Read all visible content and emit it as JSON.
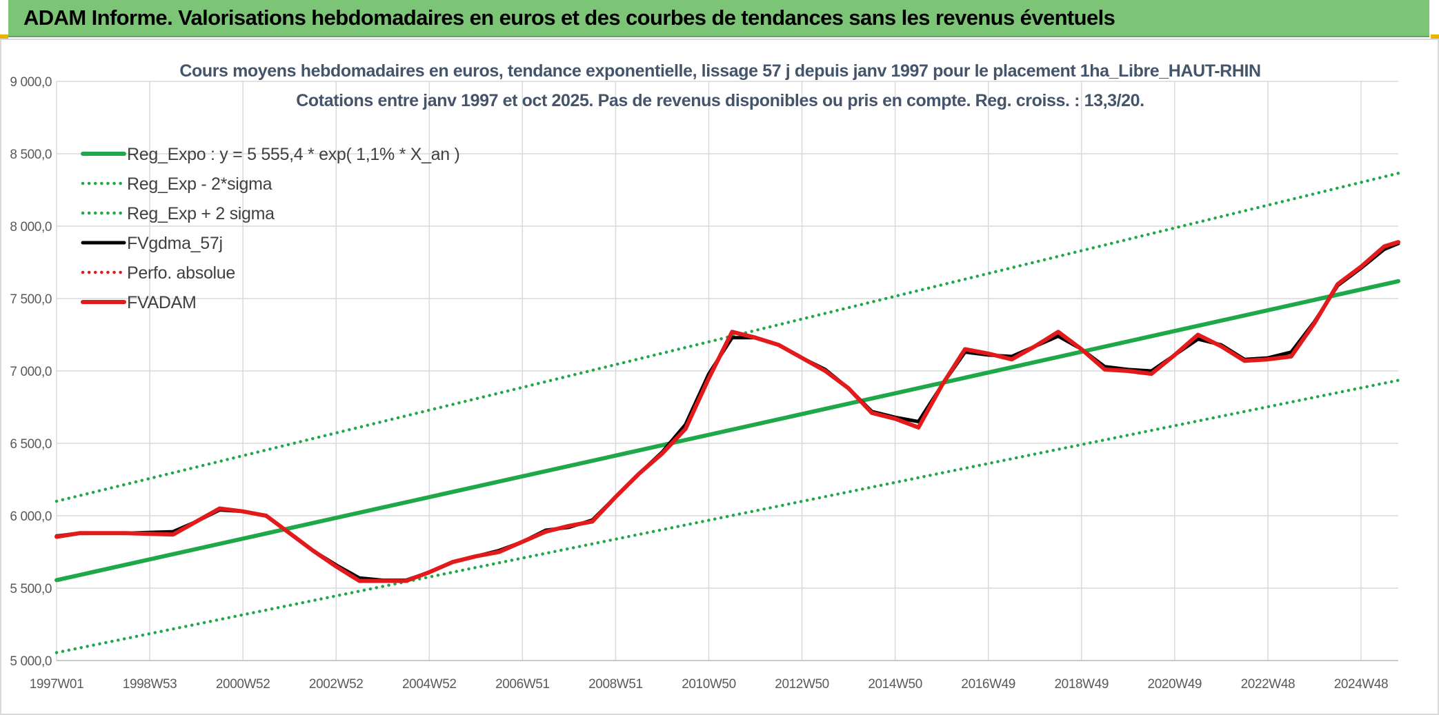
{
  "header": {
    "title": "ADAM Informe. Valorisations hebdomadaires en euros et des courbes de tendances sans les revenus éventuels",
    "banner_color": "#7cc576",
    "accent_color": "#e8b400"
  },
  "chart_data": {
    "type": "line",
    "title_line1": "Cours moyens hebdomadaires en euros, tendance exponentielle, lissage 57 j depuis janv 1997 pour le placement 1ha_Libre_HAUT-RHIN",
    "title_line2": "Cotations entre janv 1997 et oct 2025. Pas de revenus disponibles ou pris en compte. Reg. croiss. : 13,3/20.",
    "xlabel": "",
    "ylabel": "",
    "xlim": [
      1997.0,
      2025.8
    ],
    "ylim": [
      5000,
      9000
    ],
    "grid": true,
    "legend_position": "top-left",
    "y_ticks": [
      {
        "value": 5000,
        "label": "5 000,0"
      },
      {
        "value": 5500,
        "label": "5 500,0"
      },
      {
        "value": 6000,
        "label": "6 000,0"
      },
      {
        "value": 6500,
        "label": "6 500,0"
      },
      {
        "value": 7000,
        "label": "7 000,0"
      },
      {
        "value": 7500,
        "label": "7 500,0"
      },
      {
        "value": 8000,
        "label": "8 000,0"
      },
      {
        "value": 8500,
        "label": "8 500,0"
      },
      {
        "value": 9000,
        "label": "9 000,0"
      }
    ],
    "x_ticks": [
      {
        "value": 1997.0,
        "label": "1997W01"
      },
      {
        "value": 1999.0,
        "label": "1998W53"
      },
      {
        "value": 2001.0,
        "label": "2000W52"
      },
      {
        "value": 2003.0,
        "label": "2002W52"
      },
      {
        "value": 2005.0,
        "label": "2004W52"
      },
      {
        "value": 2007.0,
        "label": "2006W51"
      },
      {
        "value": 2009.0,
        "label": "2008W51"
      },
      {
        "value": 2011.0,
        "label": "2010W50"
      },
      {
        "value": 2013.0,
        "label": "2012W50"
      },
      {
        "value": 2015.0,
        "label": "2014W50"
      },
      {
        "value": 2017.0,
        "label": "2016W49"
      },
      {
        "value": 2019.0,
        "label": "2018W49"
      },
      {
        "value": 2021.0,
        "label": "2020W49"
      },
      {
        "value": 2023.0,
        "label": "2022W48"
      },
      {
        "value": 2025.0,
        "label": "2024W48"
      }
    ],
    "series": [
      {
        "name": "Reg_Expo : y = 5 555,4 * exp( 1,1% *  X_an )",
        "color": "#1fa84a",
        "style": "solid-thick",
        "x": [
          1997.0,
          2025.8
        ],
        "y": [
          5555.4,
          7620
        ]
      },
      {
        "name": "Reg_Exp - 2*sigma",
        "color": "#1fa84a",
        "style": "dotted",
        "x": [
          1997.0,
          2025.8
        ],
        "y": [
          5055,
          6935
        ]
      },
      {
        "name": "Reg_Exp + 2 sigma",
        "color": "#1fa84a",
        "style": "dotted",
        "x": [
          1997.0,
          2025.8
        ],
        "y": [
          6100,
          8365
        ]
      },
      {
        "name": "FVgdma_57j",
        "color": "#000000",
        "style": "solid",
        "x": [
          1997.0,
          1997.5,
          1998.5,
          1999.5,
          2000.0,
          2000.5,
          2001.0,
          2001.5,
          2002.0,
          2002.5,
          2003.0,
          2003.5,
          2004.0,
          2004.5,
          2005.0,
          2005.5,
          2006.0,
          2006.5,
          2007.0,
          2007.5,
          2008.0,
          2008.5,
          2009.0,
          2009.5,
          2010.0,
          2010.5,
          2011.0,
          2011.5,
          2012.0,
          2012.5,
          2013.0,
          2013.5,
          2014.0,
          2014.5,
          2015.0,
          2015.5,
          2016.0,
          2016.5,
          2017.0,
          2017.5,
          2018.0,
          2018.5,
          2019.0,
          2019.5,
          2020.0,
          2020.5,
          2021.0,
          2021.5,
          2022.0,
          2022.5,
          2023.0,
          2023.5,
          2024.0,
          2024.5,
          2025.0,
          2025.5,
          2025.8
        ],
        "y": [
          5860,
          5880,
          5880,
          5890,
          5960,
          6040,
          6030,
          6000,
          5880,
          5760,
          5660,
          5570,
          5555,
          5555,
          5610,
          5680,
          5720,
          5760,
          5820,
          5900,
          5920,
          5970,
          6130,
          6290,
          6440,
          6630,
          6980,
          7230,
          7230,
          7180,
          7090,
          7010,
          6880,
          6720,
          6680,
          6650,
          6900,
          7130,
          7110,
          7100,
          7170,
          7240,
          7150,
          7030,
          7010,
          7000,
          7110,
          7220,
          7180,
          7080,
          7090,
          7130,
          7340,
          7590,
          7710,
          7840,
          7880
        ]
      },
      {
        "name": "Perfo. absolue",
        "color": "#e31a1c",
        "style": "dotted",
        "x": [],
        "y": []
      },
      {
        "name": "FVADAM",
        "color": "#e31a1c",
        "style": "solid-thick",
        "x": [
          1997.0,
          1997.5,
          1998.5,
          1999.5,
          2000.0,
          2000.5,
          2001.0,
          2001.5,
          2002.0,
          2002.5,
          2003.0,
          2003.5,
          2004.0,
          2004.5,
          2005.0,
          2005.5,
          2006.0,
          2006.5,
          2007.0,
          2007.5,
          2008.0,
          2008.5,
          2009.0,
          2009.5,
          2010.0,
          2010.5,
          2011.0,
          2011.5,
          2012.0,
          2012.5,
          2013.0,
          2013.5,
          2014.0,
          2014.5,
          2015.0,
          2015.5,
          2016.0,
          2016.5,
          2017.0,
          2017.5,
          2018.0,
          2018.5,
          2019.0,
          2019.5,
          2020.0,
          2020.5,
          2021.0,
          2021.5,
          2022.0,
          2022.5,
          2023.0,
          2023.5,
          2024.0,
          2024.5,
          2025.0,
          2025.5,
          2025.8
        ],
        "y": [
          5855,
          5880,
          5880,
          5870,
          5960,
          6050,
          6030,
          6000,
          5880,
          5760,
          5650,
          5550,
          5550,
          5550,
          5610,
          5680,
          5720,
          5750,
          5820,
          5890,
          5930,
          5960,
          6130,
          6290,
          6430,
          6600,
          6950,
          7270,
          7230,
          7180,
          7090,
          7000,
          6880,
          6710,
          6670,
          6610,
          6900,
          7150,
          7120,
          7080,
          7170,
          7270,
          7150,
          7010,
          7000,
          6980,
          7110,
          7250,
          7170,
          7070,
          7080,
          7100,
          7330,
          7600,
          7720,
          7860,
          7890
        ]
      }
    ]
  }
}
